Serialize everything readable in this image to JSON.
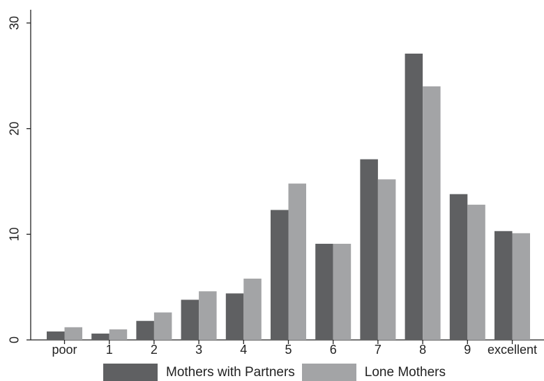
{
  "chart_data": {
    "type": "bar",
    "categories": [
      "poor",
      "1",
      "2",
      "3",
      "4",
      "5",
      "6",
      "7",
      "8",
      "9",
      "excellent"
    ],
    "series": [
      {
        "name": "Mothers with Partners",
        "color": "#5f6062",
        "values": [
          0.8,
          0.6,
          1.8,
          3.8,
          4.4,
          12.3,
          9.1,
          17.1,
          27.1,
          13.8,
          10.3
        ]
      },
      {
        "name": "Lone Mothers",
        "color": "#a3a4a6",
        "values": [
          1.2,
          1.0,
          2.6,
          4.6,
          5.8,
          14.8,
          9.1,
          15.2,
          24.0,
          12.8,
          10.1
        ]
      }
    ],
    "y_ticks": [
      "0",
      "10",
      "20",
      "30"
    ],
    "ylim": [
      0,
      30
    ],
    "title": "",
    "xlabel": "",
    "ylabel": "",
    "grid": false,
    "legend_position": "bottom"
  }
}
